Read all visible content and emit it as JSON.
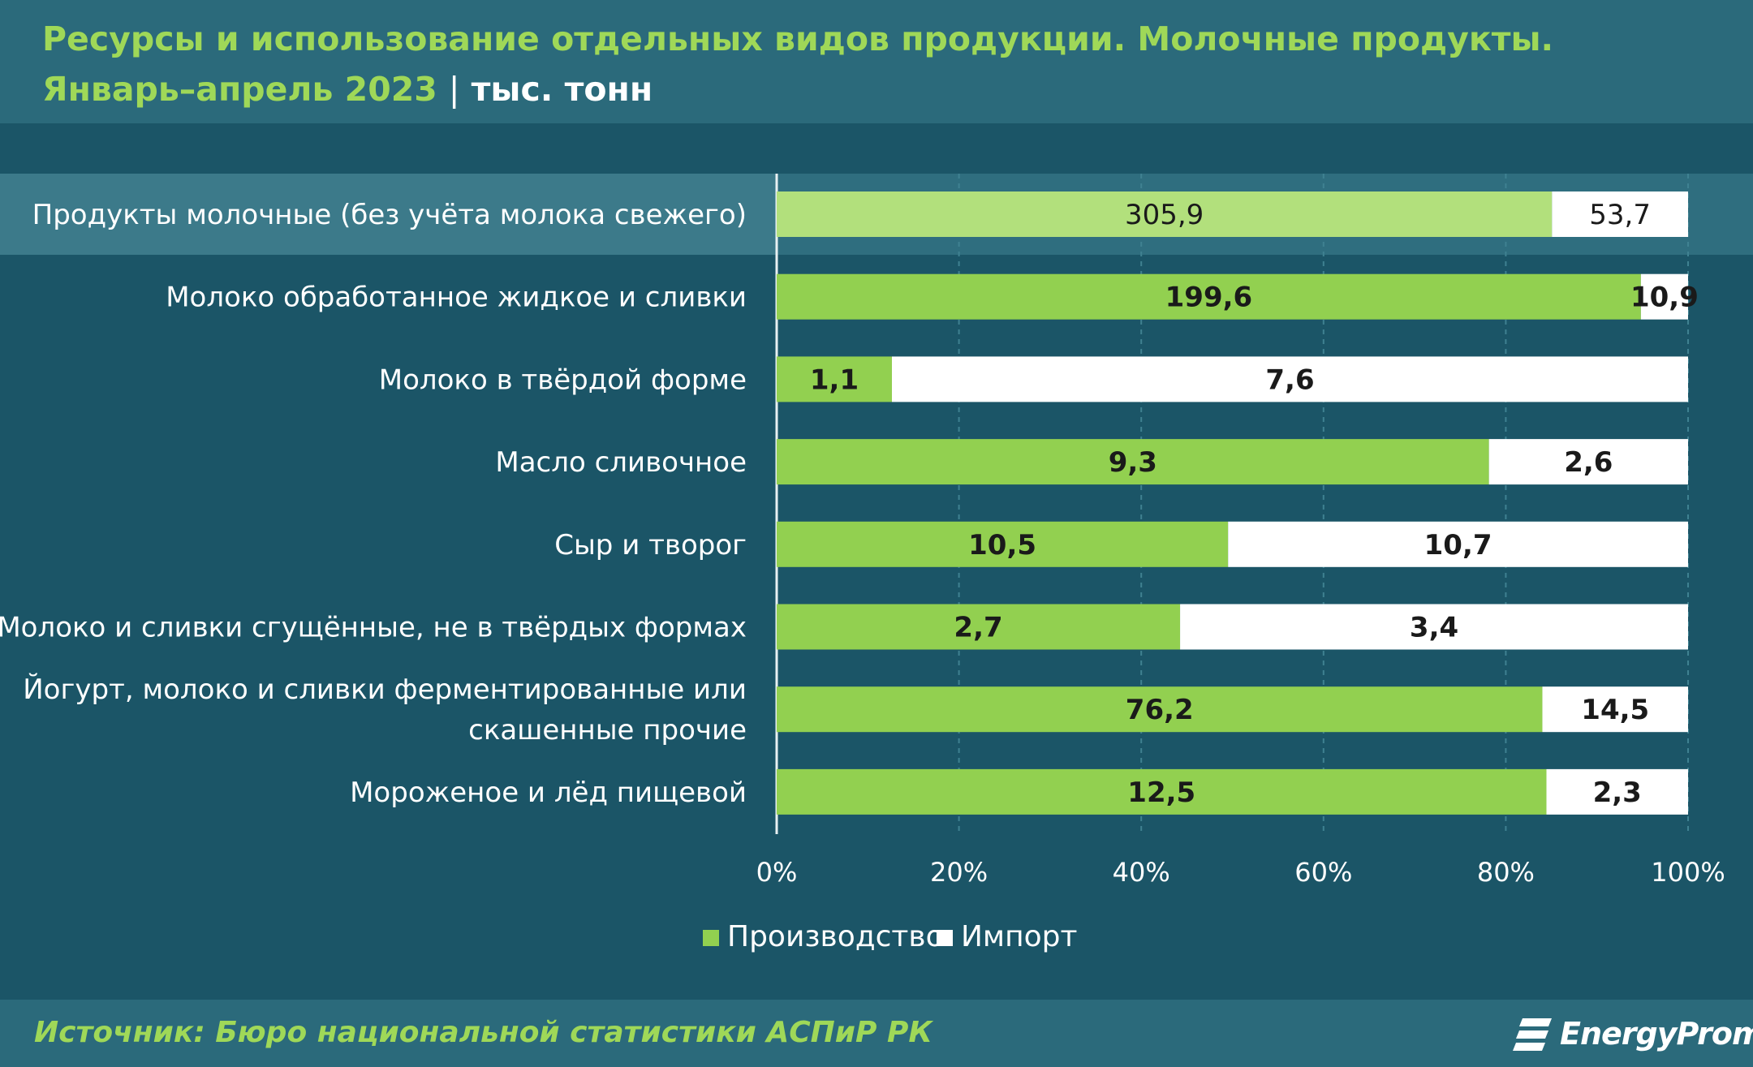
{
  "header": {
    "title_line1": "Ресурсы и использование отдельных видов продукции. Молочные продукты.",
    "title_line2": "Январь–апрель 2023",
    "separator": "|",
    "unit": "тыс. тонн"
  },
  "chart_data": {
    "type": "bar",
    "orientation": "horizontal",
    "stacking": "percent",
    "title": "Ресурсы и использование отдельных видов продукции. Молочные продукты. Январь–апрель 2023",
    "unit": "тыс. тонн",
    "categories": [
      "Продукты молочные (без учёта молока свежего)",
      "Молоко обработанное жидкое и сливки",
      "Молоко в твёрдой форме",
      "Масло сливочное",
      "Сыр и творог",
      "Молоко и сливки сгущённые, не в твёрдых формах",
      "Йогурт, молоко и сливки ферментированные или скашенные прочие",
      "Мороженое и лёд пищевой"
    ],
    "category_lines": [
      [
        "Продукты молочные (без учёта молока свежего)"
      ],
      [
        "Молоко обработанное жидкое и сливки"
      ],
      [
        "Молоко в твёрдой форме"
      ],
      [
        "Масло сливочное"
      ],
      [
        "Сыр и творог"
      ],
      [
        "Молоко и сливки сгущённые, не в твёрдых формах"
      ],
      [
        "Йогурт, молоко и сливки ферментированные или",
        "скашенные прочие"
      ],
      [
        "Мороженое и лёд пищевой"
      ]
    ],
    "series": [
      {
        "name": "Производство",
        "color": "#92d050",
        "values": [
          305.9,
          199.6,
          1.1,
          9.3,
          10.5,
          2.7,
          76.2,
          12.5
        ],
        "labels": [
          "305,9",
          "199,6",
          "1,1",
          "9,3",
          "10,5",
          "2,7",
          "76,2",
          "12,5"
        ]
      },
      {
        "name": "Импорт",
        "color": "#ffffff",
        "values": [
          53.7,
          10.9,
          7.6,
          2.6,
          10.7,
          3.4,
          14.5,
          2.3
        ],
        "labels": [
          "53,7",
          "10,9",
          "7,6",
          "2,6",
          "10,7",
          "3,4",
          "14,5",
          "2,3"
        ]
      }
    ],
    "highlight_index": 0,
    "highlight_color": "#b2e07c",
    "xaxis": {
      "range": [
        0,
        100
      ],
      "ticks": [
        "0%",
        "20%",
        "40%",
        "60%",
        "80%",
        "100%"
      ]
    },
    "grid": "vertical dashed",
    "legend": "bottom-center"
  },
  "footer": {
    "source": "Источник: Бюро национальной статистики АСПиР РК",
    "brand": "EnergyProm"
  }
}
